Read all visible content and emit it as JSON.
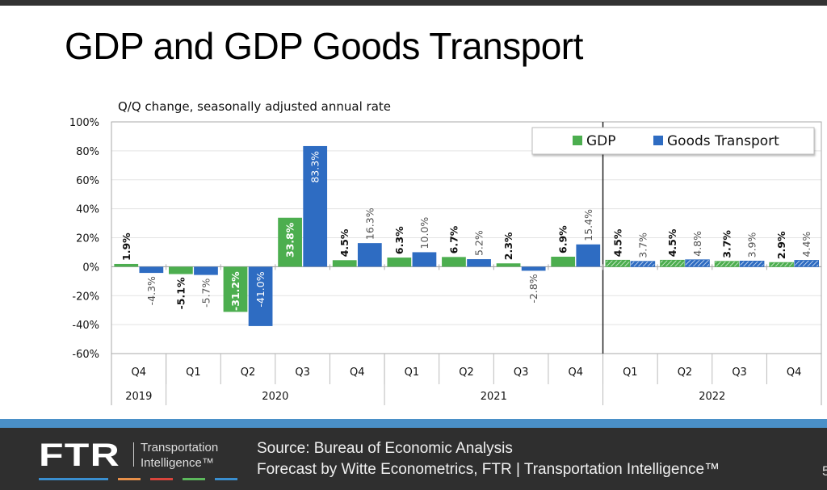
{
  "slide": {
    "title": "GDP and GDP Goods Transport",
    "page_number": "5"
  },
  "footer": {
    "logo_text": "FTR",
    "logo_line1": "Transportation",
    "logo_line2": "Intelligence™",
    "dash_colors": [
      "#3a8fd0",
      "#e8904a",
      "#d9453c",
      "#5cb85c",
      "#3a8fd0"
    ],
    "source_line1": "Source: Bureau of Economic Analysis",
    "source_line2": "Forecast by Witte Econometrics, FTR | Transportation Intelligence™"
  },
  "chart_data": {
    "type": "bar",
    "subtitle": "Q/Q change, seasonally adjusted annual rate",
    "xlabel": "",
    "ylabel": "",
    "ylim": [
      -60,
      100
    ],
    "yticks": [
      100,
      80,
      60,
      40,
      20,
      0,
      -20,
      -40,
      -60
    ],
    "ytick_labels": [
      "100%",
      "80%",
      "60%",
      "40%",
      "20%",
      "0%",
      "-20%",
      "-40%",
      "-60%"
    ],
    "grid": true,
    "legend_placement": "top-right",
    "categories": [
      "Q4",
      "Q1",
      "Q2",
      "Q3",
      "Q4",
      "Q1",
      "Q2",
      "Q3",
      "Q4",
      "Q1",
      "Q2",
      "Q3",
      "Q4"
    ],
    "year_groups": [
      {
        "label": "2019",
        "count": 1
      },
      {
        "label": "2020",
        "count": 4
      },
      {
        "label": "2021",
        "count": 4
      },
      {
        "label": "2022",
        "count": 4
      }
    ],
    "forecast_start_index": 9,
    "series": [
      {
        "name": "GDP",
        "color": "#4cae4f",
        "values": [
          1.9,
          -5.1,
          -31.2,
          33.8,
          4.5,
          6.3,
          6.7,
          2.3,
          6.9,
          4.5,
          4.5,
          3.7,
          2.9
        ],
        "labels": [
          "1.9%",
          "-5.1%",
          "-31.2%",
          "33.8%",
          "4.5%",
          "6.3%",
          "6.7%",
          "2.3%",
          "6.9%",
          "4.5%",
          "4.5%",
          "3.7%",
          "2.9%"
        ]
      },
      {
        "name": "Goods Transport",
        "color": "#2e6cc2",
        "values": [
          -4.3,
          -5.7,
          -41.0,
          83.3,
          16.3,
          10.0,
          5.2,
          -2.8,
          15.4,
          3.7,
          4.8,
          3.9,
          4.4
        ],
        "labels": [
          "-4.3%",
          "-5.7%",
          "-41.0%",
          "83.3%",
          "16.3%",
          "10.0%",
          "5.2%",
          "-2.8%",
          "15.4%",
          "3.7%",
          "4.8%",
          "3.9%",
          "4.4%"
        ]
      }
    ]
  }
}
